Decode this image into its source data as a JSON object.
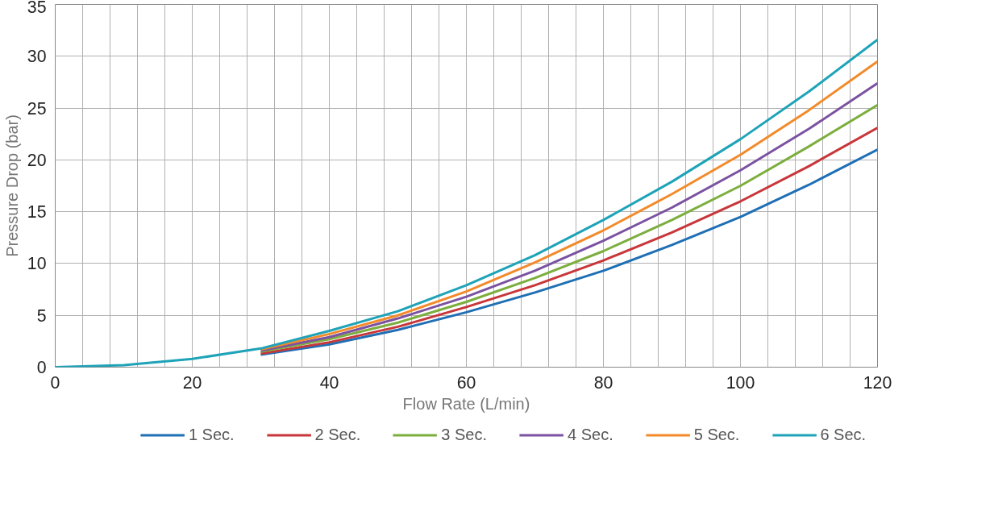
{
  "chart_data": {
    "type": "line",
    "xlabel": "Flow Rate (L/min)",
    "ylabel": "Pressure Drop (bar)",
    "x": [
      0,
      10,
      20,
      30,
      40,
      50,
      60,
      70,
      80,
      90,
      100,
      110,
      120
    ],
    "xlim": [
      0,
      120
    ],
    "ylim": [
      0,
      35
    ],
    "xticks": [
      0,
      {
        "value": 4,
        "label": null
      },
      {
        "value": 8,
        "label": null
      },
      {
        "value": 12,
        "label": null
      },
      {
        "value": 16,
        "label": null
      },
      20,
      {
        "value": 24,
        "label": null
      },
      {
        "value": 28,
        "label": null
      },
      {
        "value": 32,
        "label": null
      },
      {
        "value": 36,
        "label": null
      },
      40,
      {
        "value": 44,
        "label": null
      },
      {
        "value": 48,
        "label": null
      },
      {
        "value": 52,
        "label": null
      },
      {
        "value": 56,
        "label": null
      },
      60,
      {
        "value": 64,
        "label": null
      },
      {
        "value": 68,
        "label": null
      },
      {
        "value": 72,
        "label": null
      },
      {
        "value": 76,
        "label": null
      },
      80,
      {
        "value": 84,
        "label": null
      },
      {
        "value": 88,
        "label": null
      },
      {
        "value": 92,
        "label": null
      },
      {
        "value": 96,
        "label": null
      },
      100,
      {
        "value": 104,
        "label": null
      },
      {
        "value": 108,
        "label": null
      },
      {
        "value": 112,
        "label": null
      },
      {
        "value": 116,
        "label": null
      },
      120
    ],
    "yticks": [
      0,
      5,
      10,
      15,
      20,
      25,
      30,
      35
    ],
    "grid": true,
    "legend": "bottom",
    "marker": "none",
    "line_style": "solid",
    "series": [
      {
        "name": "1 Sec.",
        "color": "#1f6fb5",
        "values": [
          null,
          null,
          null,
          1.2,
          2.2,
          3.6,
          5.3,
          7.2,
          9.3,
          11.8,
          14.5,
          17.6,
          21.0
        ]
      },
      {
        "name": "2 Sec.",
        "color": "#c8363a",
        "values": [
          null,
          null,
          null,
          1.3,
          2.4,
          3.9,
          5.8,
          7.9,
          10.3,
          13.0,
          16.0,
          19.4,
          23.1
        ]
      },
      {
        "name": "3 Sec.",
        "color": "#7cae3e",
        "values": [
          null,
          null,
          null,
          1.5,
          2.7,
          4.3,
          6.3,
          8.6,
          11.2,
          14.2,
          17.5,
          21.3,
          25.3
        ]
      },
      {
        "name": "4 Sec.",
        "color": "#7b52a1",
        "values": [
          null,
          null,
          null,
          1.6,
          2.9,
          4.7,
          6.8,
          9.3,
          12.2,
          15.4,
          19.0,
          23.0,
          27.4
        ]
      },
      {
        "name": "5 Sec.",
        "color": "#f38a2a",
        "values": [
          null,
          null,
          null,
          1.7,
          3.2,
          5.0,
          7.3,
          10.1,
          13.2,
          16.7,
          20.5,
          24.8,
          29.5
        ]
      },
      {
        "name": "6 Sec.",
        "color": "#1ea3b8",
        "values": [
          0,
          0.2,
          0.8,
          1.8,
          3.5,
          5.4,
          7.9,
          10.8,
          14.2,
          17.9,
          22.0,
          26.6,
          31.6
        ]
      }
    ]
  }
}
